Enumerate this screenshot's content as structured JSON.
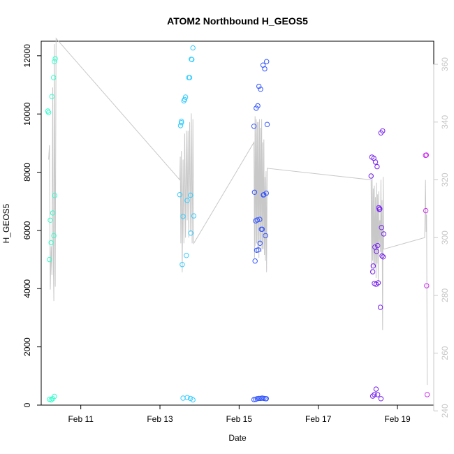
{
  "chart_data": {
    "type": "scatter",
    "title": "ATOM2 Northbound H_GEOS5",
    "xlabel": "Date",
    "ylabel": "H_GEOS5",
    "x_unit": "days",
    "xlim": [
      "2016-02-10 00:00",
      "2016-02-19 22:00"
    ],
    "ylim": [
      0,
      12500
    ],
    "y2lim": [
      242,
      368
    ],
    "x_ticks": [
      {
        "value": "2016-02-11",
        "label": "Feb 11"
      },
      {
        "value": "2016-02-13",
        "label": "Feb 13"
      },
      {
        "value": "2016-02-15",
        "label": "Feb 15"
      },
      {
        "value": "2016-02-17",
        "label": "Feb 17"
      },
      {
        "value": "2016-02-19",
        "label": "Feb 19"
      }
    ],
    "y_ticks": [
      0,
      2000,
      4000,
      6000,
      8000,
      10000,
      12000
    ],
    "y2_ticks": [
      240,
      260,
      280,
      300,
      320,
      340,
      360
    ],
    "grid": false,
    "series": [
      {
        "color": "#33ffcc",
        "points": [
          [
            "2016-02-10 04:00",
            10100
          ],
          [
            "2016-02-10 04:30",
            10050
          ],
          [
            "2016-02-10 05:00",
            5000
          ],
          [
            "2016-02-10 05:30",
            6350
          ],
          [
            "2016-02-10 06:00",
            5580
          ],
          [
            "2016-02-10 06:30",
            10600
          ],
          [
            "2016-02-10 07:00",
            6600
          ],
          [
            "2016-02-10 07:30",
            11250
          ],
          [
            "2016-02-10 08:00",
            11800
          ],
          [
            "2016-02-10 08:30",
            11900
          ],
          [
            "2016-02-10 07:40",
            5820
          ],
          [
            "2016-02-10 08:10",
            7200
          ],
          [
            "2016-02-10 05:00",
            200
          ],
          [
            "2016-02-10 06:00",
            180
          ],
          [
            "2016-02-10 07:00",
            220
          ],
          [
            "2016-02-10 08:00",
            300
          ]
        ]
      },
      {
        "color": "#33ccff",
        "points": [
          [
            "2016-02-13 12:00",
            7230
          ],
          [
            "2016-02-13 12:30",
            9600
          ],
          [
            "2016-02-13 13:00",
            9750
          ],
          [
            "2016-02-13 13:00",
            9700
          ],
          [
            "2016-02-13 13:30",
            4830
          ],
          [
            "2016-02-13 14:00",
            6480
          ],
          [
            "2016-02-13 14:30",
            10450
          ],
          [
            "2016-02-13 15:00",
            10500
          ],
          [
            "2016-02-13 15:30",
            10580
          ],
          [
            "2016-02-13 16:00",
            5140
          ],
          [
            "2016-02-13 16:30",
            7030
          ],
          [
            "2016-02-13 17:30",
            11250
          ],
          [
            "2016-02-13 18:00",
            11250
          ],
          [
            "2016-02-13 18:30",
            7210
          ],
          [
            "2016-02-13 18:40",
            5910
          ],
          [
            "2016-02-13 19:00",
            11880
          ],
          [
            "2016-02-13 19:20",
            11870
          ],
          [
            "2016-02-13 20:00",
            12270
          ],
          [
            "2016-02-13 20:30",
            6500
          ],
          [
            "2016-02-13 14:00",
            240
          ],
          [
            "2016-02-13 16:30",
            260
          ],
          [
            "2016-02-13 18:30",
            230
          ],
          [
            "2016-02-13 20:00",
            180
          ]
        ]
      },
      {
        "color": "#3355ff",
        "points": [
          [
            "2016-02-15 09:00",
            9580
          ],
          [
            "2016-02-15 09:20",
            7310
          ],
          [
            "2016-02-15 09:40",
            4950
          ],
          [
            "2016-02-15 10:00",
            6330
          ],
          [
            "2016-02-15 10:20",
            10200
          ],
          [
            "2016-02-15 10:40",
            5320
          ],
          [
            "2016-02-15 11:00",
            6360
          ],
          [
            "2016-02-15 11:20",
            10280
          ],
          [
            "2016-02-15 11:40",
            5330
          ],
          [
            "2016-02-15 12:00",
            10950
          ],
          [
            "2016-02-15 12:30",
            6380
          ],
          [
            "2016-02-15 12:40",
            5560
          ],
          [
            "2016-02-15 13:00",
            10850
          ],
          [
            "2016-02-15 13:30",
            6040
          ],
          [
            "2016-02-15 14:00",
            6040
          ],
          [
            "2016-02-15 14:30",
            11680
          ],
          [
            "2016-02-15 14:40",
            7220
          ],
          [
            "2016-02-15 15:00",
            7230
          ],
          [
            "2016-02-15 15:30",
            11550
          ],
          [
            "2016-02-15 16:00",
            5820
          ],
          [
            "2016-02-15 16:30",
            7280
          ],
          [
            "2016-02-15 16:40",
            11800
          ],
          [
            "2016-02-15 17:00",
            9640
          ],
          [
            "2016-02-15 09:00",
            190
          ],
          [
            "2016-02-15 10:00",
            200
          ],
          [
            "2016-02-15 11:00",
            220
          ],
          [
            "2016-02-15 12:00",
            230
          ],
          [
            "2016-02-15 13:00",
            230
          ],
          [
            "2016-02-15 14:00",
            240
          ],
          [
            "2016-02-15 15:00",
            230
          ],
          [
            "2016-02-15 16:00",
            220
          ],
          [
            "2016-02-15 16:30",
            220
          ]
        ]
      },
      {
        "color": "#7722ee",
        "points": [
          [
            "2016-02-18 08:00",
            7870
          ],
          [
            "2016-02-18 08:30",
            8520
          ],
          [
            "2016-02-18 09:00",
            4580
          ],
          [
            "2016-02-18 09:20",
            4780
          ],
          [
            "2016-02-18 09:40",
            8480
          ],
          [
            "2016-02-18 10:00",
            4180
          ],
          [
            "2016-02-18 10:20",
            5430
          ],
          [
            "2016-02-18 10:40",
            8350
          ],
          [
            "2016-02-18 11:00",
            4150
          ],
          [
            "2016-02-18 11:20",
            5280
          ],
          [
            "2016-02-18 11:40",
            8190
          ],
          [
            "2016-02-18 12:00",
            5480
          ],
          [
            "2016-02-18 12:20",
            4200
          ],
          [
            "2016-02-18 12:40",
            6780
          ],
          [
            "2016-02-18 13:00",
            6720
          ],
          [
            "2016-02-18 13:20",
            6740
          ],
          [
            "2016-02-18 13:40",
            3360
          ],
          [
            "2016-02-18 14:00",
            9350
          ],
          [
            "2016-02-18 14:20",
            6100
          ],
          [
            "2016-02-18 14:40",
            5130
          ],
          [
            "2016-02-18 15:00",
            9420
          ],
          [
            "2016-02-18 15:20",
            5090
          ],
          [
            "2016-02-18 15:40",
            5880
          ],
          [
            "2016-02-18 09:00",
            310
          ],
          [
            "2016-02-18 10:00",
            360
          ],
          [
            "2016-02-18 11:00",
            550
          ],
          [
            "2016-02-18 12:00",
            360
          ],
          [
            "2016-02-18 14:00",
            220
          ]
        ]
      },
      {
        "color": "#cc33ee",
        "points": [
          [
            "2016-02-19 17:00",
            8580
          ],
          [
            "2016-02-19 17:30",
            8590
          ],
          [
            "2016-02-19 17:10",
            6680
          ],
          [
            "2016-02-19 17:40",
            4100
          ],
          [
            "2016-02-19 18:00",
            360
          ]
        ]
      }
    ],
    "secondary_line": {
      "color": "#c8c8c8",
      "axis": "right",
      "points": [
        [
          "2016-02-10 04:30",
          327
        ],
        [
          "2016-02-10 05:00",
          332
        ],
        [
          "2016-02-10 05:30",
          282
        ],
        [
          "2016-02-10 06:00",
          297
        ],
        [
          "2016-02-10 06:30",
          287
        ],
        [
          "2016-02-10 07:00",
          352
        ],
        [
          "2016-02-10 07:20",
          292
        ],
        [
          "2016-02-10 07:40",
          278
        ],
        [
          "2016-02-10 08:00",
          367
        ],
        [
          "2016-02-10 08:30",
          283
        ],
        [
          "2016-02-10 09:00",
          369
        ],
        [
          "2016-02-13 12:00",
          320
        ],
        [
          "2016-02-13 12:20",
          328
        ],
        [
          "2016-02-13 12:40",
          298
        ],
        [
          "2016-02-13 13:00",
          330
        ],
        [
          "2016-02-13 13:30",
          288
        ],
        [
          "2016-02-13 14:00",
          327
        ],
        [
          "2016-02-13 14:30",
          298
        ],
        [
          "2016-02-13 15:00",
          336
        ],
        [
          "2016-02-13 15:30",
          300
        ],
        [
          "2016-02-13 16:00",
          337
        ],
        [
          "2016-02-13 16:30",
          306
        ],
        [
          "2016-02-13 17:00",
          337
        ],
        [
          "2016-02-13 17:30",
          300
        ],
        [
          "2016-02-13 18:00",
          340
        ],
        [
          "2016-02-13 18:30",
          302
        ],
        [
          "2016-02-13 19:00",
          343
        ],
        [
          "2016-02-13 19:30",
          298
        ],
        [
          "2016-02-13 20:00",
          341
        ],
        [
          "2016-02-13 20:30",
          298
        ],
        [
          "2016-02-15 09:00",
          333
        ],
        [
          "2016-02-15 09:20",
          293
        ],
        [
          "2016-02-15 09:40",
          342
        ],
        [
          "2016-02-15 10:00",
          297
        ],
        [
          "2016-02-15 10:20",
          341
        ],
        [
          "2016-02-15 10:40",
          298
        ],
        [
          "2016-02-15 11:00",
          340
        ],
        [
          "2016-02-15 11:20",
          296
        ],
        [
          "2016-02-15 11:40",
          340
        ],
        [
          "2016-02-15 12:00",
          293
        ],
        [
          "2016-02-15 12:20",
          341
        ],
        [
          "2016-02-15 12:40",
          298
        ],
        [
          "2016-02-15 13:00",
          338
        ],
        [
          "2016-02-15 13:20",
          295
        ],
        [
          "2016-02-15 13:40",
          341
        ],
        [
          "2016-02-15 14:00",
          296
        ],
        [
          "2016-02-15 14:20",
          333
        ],
        [
          "2016-02-15 14:40",
          296
        ],
        [
          "2016-02-15 15:00",
          334
        ],
        [
          "2016-02-15 15:20",
          294
        ],
        [
          "2016-02-15 15:40",
          321
        ],
        [
          "2016-02-15 16:00",
          292
        ],
        [
          "2016-02-15 16:20",
          323
        ],
        [
          "2016-02-15 16:40",
          288
        ],
        [
          "2016-02-15 17:00",
          324
        ],
        [
          "2016-02-18 08:00",
          320
        ],
        [
          "2016-02-18 08:20",
          288
        ],
        [
          "2016-02-18 08:40",
          322
        ],
        [
          "2016-02-18 09:00",
          292
        ],
        [
          "2016-02-18 09:20",
          317
        ],
        [
          "2016-02-18 09:40",
          289
        ],
        [
          "2016-02-18 10:00",
          318
        ],
        [
          "2016-02-18 10:20",
          290
        ],
        [
          "2016-02-18 10:40",
          314
        ],
        [
          "2016-02-18 11:00",
          286
        ],
        [
          "2016-02-18 11:20",
          319
        ],
        [
          "2016-02-18 11:40",
          291
        ],
        [
          "2016-02-18 12:00",
          315
        ],
        [
          "2016-02-18 12:20",
          283
        ],
        [
          "2016-02-18 12:40",
          316
        ],
        [
          "2016-02-18 13:00",
          298
        ],
        [
          "2016-02-18 13:20",
          306
        ],
        [
          "2016-02-18 13:40",
          295
        ],
        [
          "2016-02-18 14:00",
          320
        ],
        [
          "2016-02-18 14:20",
          294
        ],
        [
          "2016-02-18 14:40",
          313
        ],
        [
          "2016-02-18 15:00",
          268
        ],
        [
          "2016-02-18 15:20",
          321
        ],
        [
          "2016-02-18 15:40",
          296
        ],
        [
          "2016-02-19 16:30",
          300
        ],
        [
          "2016-02-19 17:00",
          320
        ],
        [
          "2016-02-19 17:20",
          302
        ],
        [
          "2016-02-19 17:40",
          308
        ],
        [
          "2016-02-19 18:00",
          249
        ]
      ]
    }
  }
}
